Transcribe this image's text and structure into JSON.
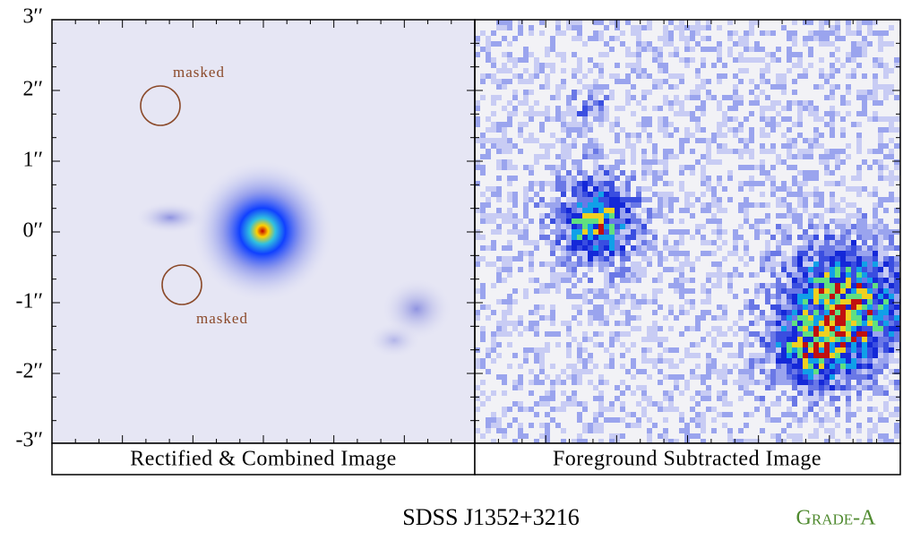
{
  "left_panel": {
    "y_axis_labels": [
      "3′′",
      "2′′",
      "1′′",
      "0′′",
      "-1′′",
      "-2′′",
      "-3′′"
    ],
    "annotations": [
      "masked",
      "masked"
    ],
    "caption": "Rectified & Combined Image"
  },
  "right_panel": {
    "caption": "Foreground Subtracted Image"
  },
  "object_name": "SDSS J1352+3216",
  "grade": "Grade-A"
}
